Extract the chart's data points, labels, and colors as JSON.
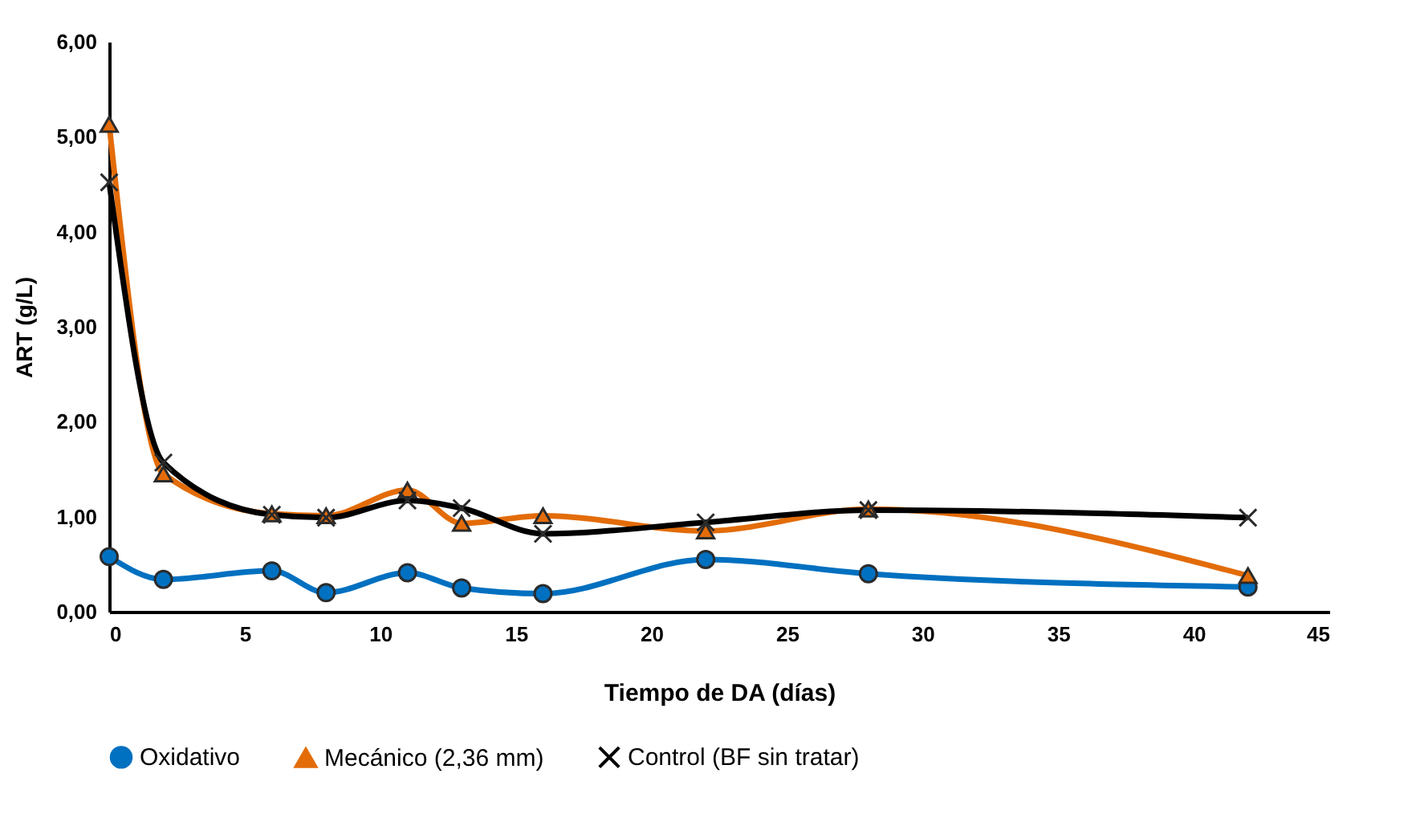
{
  "chart_data": {
    "type": "line",
    "xlabel": "Tiempo de DA (días)",
    "ylabel": "ART (g/L)",
    "x": [
      0,
      2,
      6,
      8,
      11,
      13,
      16,
      22,
      28,
      42
    ],
    "series": [
      {
        "name": "Oxidativo",
        "color": "#0070c0",
        "marker": "circle",
        "values": [
          0.58,
          0.34,
          0.43,
          0.2,
          0.41,
          0.25,
          0.19,
          0.55,
          0.4,
          0.26
        ]
      },
      {
        "name": "Mecánico (2,36 mm)",
        "color": "#e36c09",
        "marker": "triangle",
        "values": [
          5.13,
          1.45,
          1.03,
          1.01,
          1.28,
          0.93,
          1.01,
          0.85,
          1.08,
          0.38
        ]
      },
      {
        "name": "Control (BF sin tratar)",
        "color": "#000000",
        "marker": "cross",
        "values": [
          4.52,
          1.57,
          1.02,
          0.99,
          1.17,
          1.09,
          0.82,
          0.94,
          1.07,
          0.99
        ]
      }
    ],
    "xlim": [
      0,
      45
    ],
    "xticks": [
      0,
      5,
      10,
      15,
      20,
      25,
      30,
      35,
      40,
      45
    ],
    "ylim": [
      0,
      6
    ],
    "yticks": [
      {
        "value": 0,
        "label": "0,00"
      },
      {
        "value": 1,
        "label": "1,00"
      },
      {
        "value": 2,
        "label": "2,00"
      },
      {
        "value": 3,
        "label": "3,00"
      },
      {
        "value": 4,
        "label": "4,00"
      },
      {
        "value": 5,
        "label": "5,00"
      },
      {
        "value": 6,
        "label": "6,00"
      }
    ],
    "grid": false,
    "legend": "bottom"
  }
}
